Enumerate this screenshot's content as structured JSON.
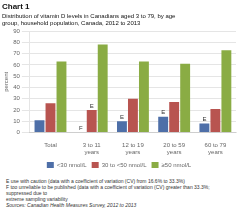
{
  "chart_data": {
    "type": "bar",
    "title": "Chart 1",
    "subtitle": [
      "Distribution of vitamin D levels in Canadians aged 3 to 79, by age",
      "group, household population, Canada, 2012 to 2013"
    ],
    "ylabel": "percent",
    "categories": [
      "Total",
      "3 to 11 years",
      "12 to 19 years",
      "20 to 59 years",
      "60 to 79 years"
    ],
    "series": [
      {
        "name": "<30 nmol/L",
        "color": "#4e6fa8",
        "values": [
          11,
          null,
          10,
          14,
          8
        ]
      },
      {
        "name": "30 to <50 nmol/L",
        "color": "#b85450",
        "values": [
          26,
          20,
          30,
          27,
          21
        ]
      },
      {
        "name": "≥50 nmol/L",
        "color": "#8aac44",
        "values": [
          63,
          78,
          63,
          61,
          73
        ]
      }
    ],
    "ylim": [
      0,
      90
    ],
    "yticks": [
      0,
      10,
      20,
      30,
      40,
      50,
      60,
      70,
      80,
      90
    ],
    "grid": true,
    "legend": "bottom",
    "annotations": [
      {
        "text": "F",
        "category": "3 to 11 years",
        "series": "<30 nmol/L"
      },
      {
        "text": "E",
        "category": "3 to 11 years",
        "series": "30 to <50 nmol/L"
      },
      {
        "text": "E",
        "category": "12 to 19 years",
        "series": "<30 nmol/L"
      },
      {
        "text": "E",
        "category": "20 to 59 years",
        "series": "<30 nmol/L"
      },
      {
        "text": "E",
        "category": "60 to 79 years",
        "series": "<30 nmol/L"
      }
    ],
    "notes": [
      "E use with caution (data with a coefficient of variation (CV) from 16.6% to 33.3%)",
      "F too unreliable to be published (data with a coefficient of variation (CV) greater than 33.3%;  suppressed due to",
      "extreme sampling variability",
      "Sources: Canadian Health Measures Survey, 2012 to 2013"
    ]
  }
}
